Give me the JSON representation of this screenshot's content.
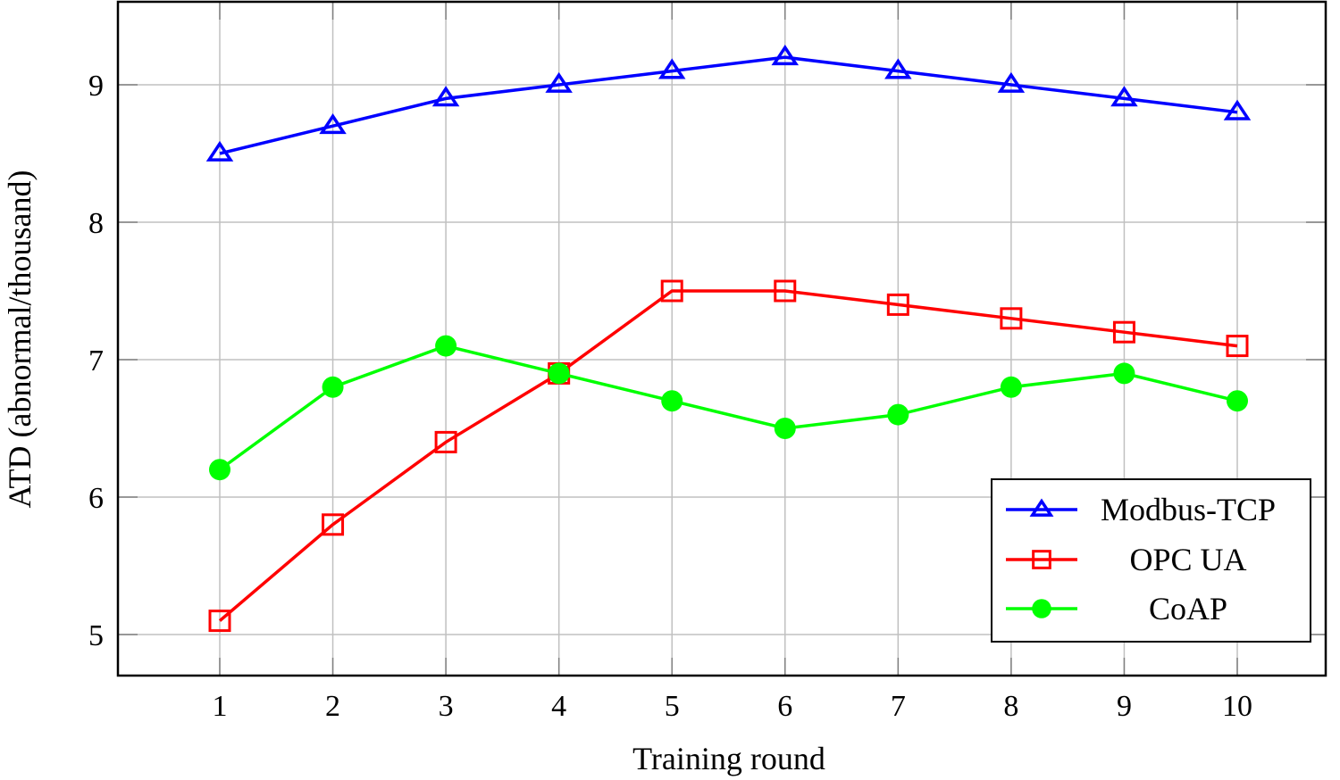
{
  "chart_data": {
    "type": "line",
    "title": "",
    "xlabel": "Training round",
    "ylabel": "ATD (abnormal/thousand)",
    "x": [
      1,
      2,
      3,
      4,
      5,
      6,
      7,
      8,
      9,
      10
    ],
    "x_ticks": [
      "1",
      "2",
      "3",
      "4",
      "5",
      "6",
      "7",
      "8",
      "9",
      "10"
    ],
    "y_ticks": [
      "5",
      "6",
      "7",
      "8",
      "9"
    ],
    "xlim": [
      0.3,
      11.0
    ],
    "ylim": [
      4.7,
      9.6
    ],
    "grid": true,
    "legend_position": "lower right",
    "series": [
      {
        "name": "Modbus-TCP",
        "color": "#0000ff",
        "marker": "triangle-open",
        "values": [
          8.5,
          8.7,
          8.9,
          9.0,
          9.1,
          9.2,
          9.1,
          9.0,
          8.9,
          8.8
        ]
      },
      {
        "name": "OPC UA",
        "color": "#ff0000",
        "marker": "square-open",
        "values": [
          5.1,
          5.8,
          6.4,
          6.9,
          7.5,
          7.5,
          7.4,
          7.3,
          7.2,
          7.1
        ]
      },
      {
        "name": "CoAP",
        "color": "#00ff00",
        "marker": "circle-filled",
        "values": [
          6.2,
          6.8,
          7.1,
          6.9,
          6.7,
          6.5,
          6.6,
          6.8,
          6.9,
          6.7
        ]
      }
    ]
  }
}
